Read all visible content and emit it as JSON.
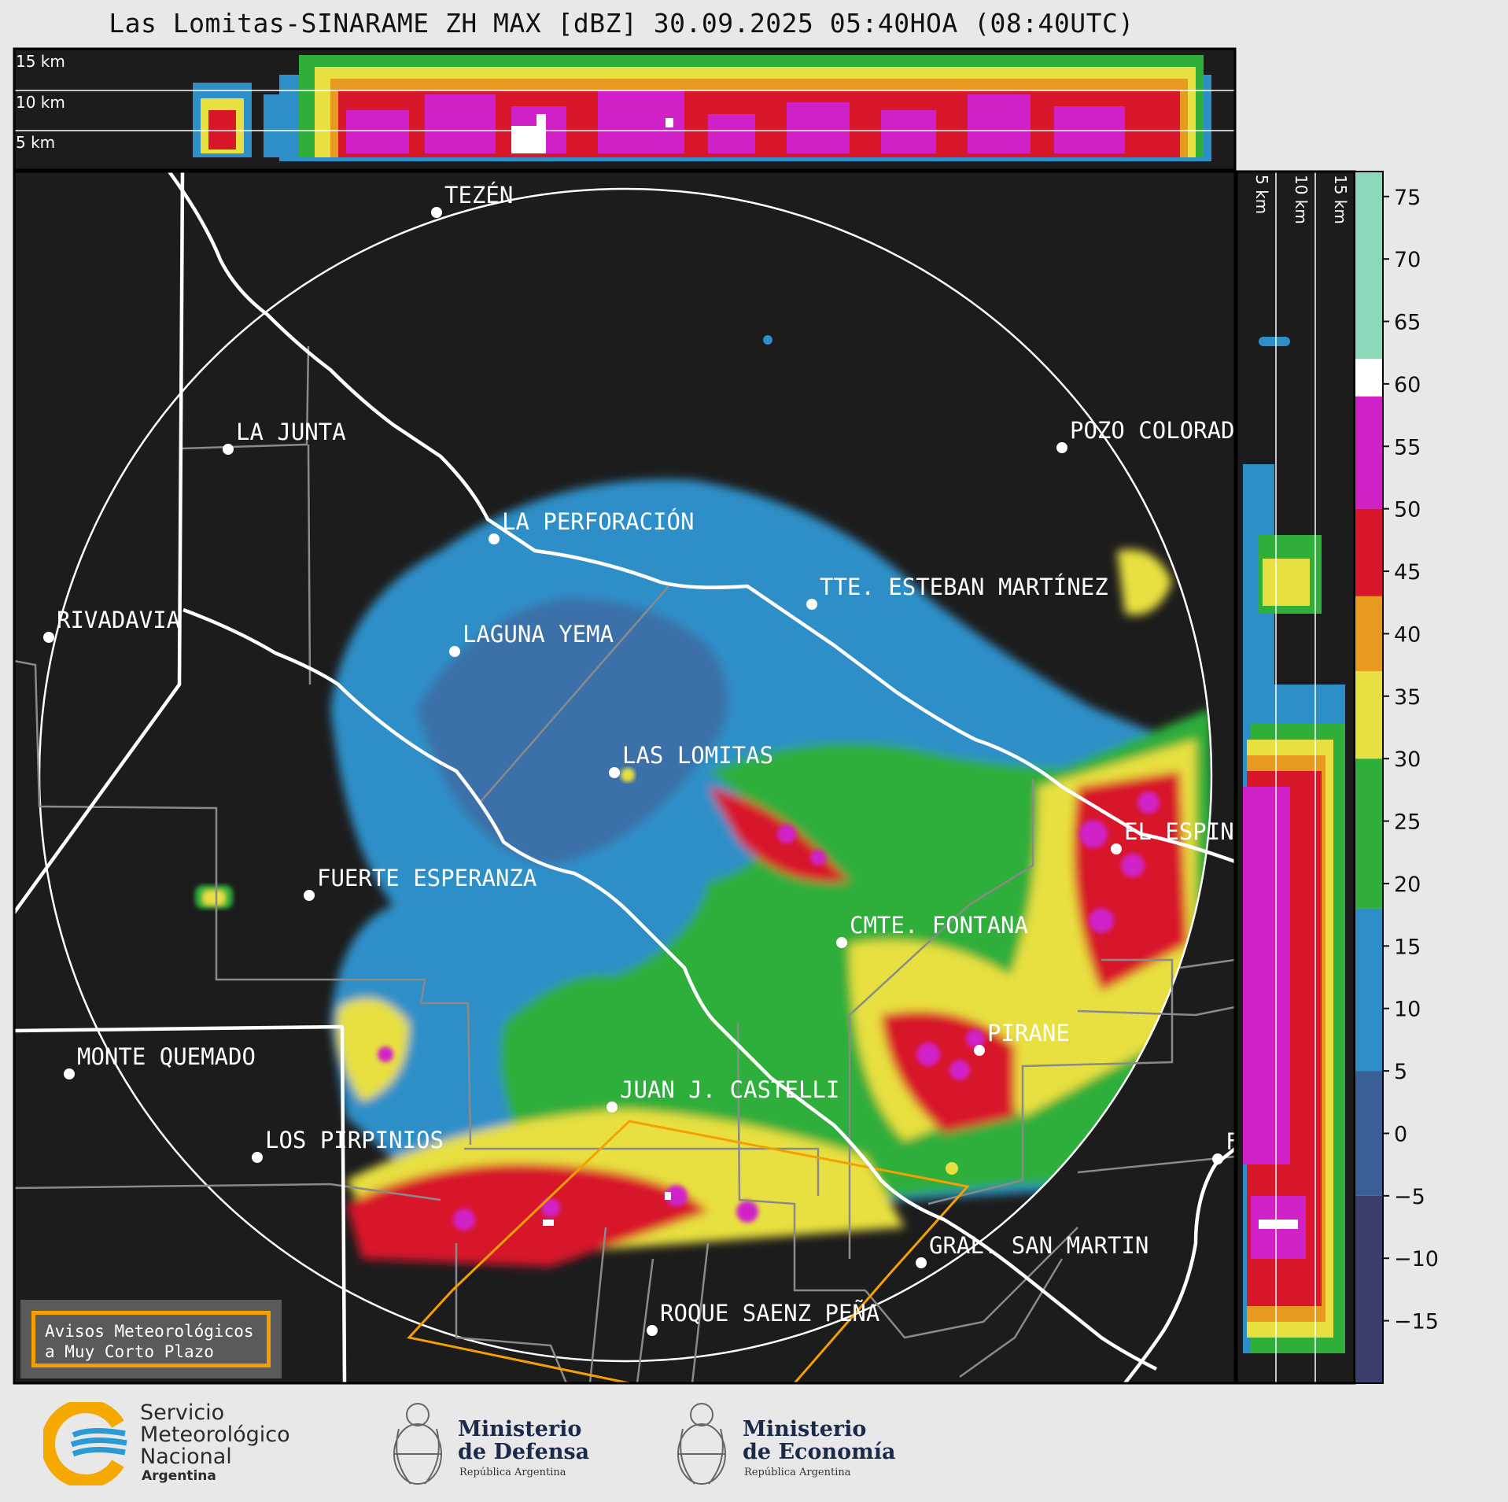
{
  "title": "Las Lomitas-SINARAME ZH MAX [dBZ] 30.09.2025 05:40HOA (08:40UTC)",
  "profile_top": {
    "levels": [
      "15 km",
      "10 km",
      "5 km"
    ]
  },
  "profile_right": {
    "levels": [
      "5 km",
      "10 km",
      "15 km"
    ]
  },
  "colorbar": {
    "ticks": [
      75,
      70,
      65,
      60,
      55,
      50,
      45,
      40,
      35,
      30,
      25,
      20,
      15,
      10,
      5,
      0,
      -5,
      -10,
      -15
    ],
    "tick_labels": [
      "75",
      "70",
      "65",
      "60",
      "55",
      "50",
      "45",
      "40",
      "35",
      "30",
      "25",
      "20",
      "15",
      "10",
      "5",
      "0",
      "−5",
      "−10",
      "−15"
    ],
    "range": [
      -20,
      77
    ],
    "stops": [
      {
        "from": -20,
        "to": -5,
        "color": "#3a3f6e"
      },
      {
        "from": -5,
        "to": 5,
        "color": "#3a5f95"
      },
      {
        "from": 5,
        "to": 18,
        "color": "#2e8fc8"
      },
      {
        "from": 18,
        "to": 30,
        "color": "#2fae3a"
      },
      {
        "from": 30,
        "to": 37,
        "color": "#e8e040"
      },
      {
        "from": 37,
        "to": 43,
        "color": "#e89a20"
      },
      {
        "from": 43,
        "to": 50,
        "color": "#d8182a"
      },
      {
        "from": 50,
        "to": 59,
        "color": "#d020c8"
      },
      {
        "from": 59,
        "to": 62,
        "color": "#ffffff"
      },
      {
        "from": 62,
        "to": 77,
        "color": "#8ad8b8"
      }
    ]
  },
  "cities": [
    {
      "name": "TEZÉN"
    },
    {
      "name": "LA JUNTA"
    },
    {
      "name": "POZO COLORAD"
    },
    {
      "name": "LA PERFORACIÓN"
    },
    {
      "name": "TTE. ESTEBAN MARTÍNEZ"
    },
    {
      "name": "RIVADAVIA"
    },
    {
      "name": "LAGUNA YEMA"
    },
    {
      "name": "LAS LOMITAS"
    },
    {
      "name": "EL ESPIN"
    },
    {
      "name": "FUERTE ESPERANZA"
    },
    {
      "name": "CMTE. FONTANA"
    },
    {
      "name": "PIRANE"
    },
    {
      "name": "MONTE QUEMADO"
    },
    {
      "name": "JUAN J. CASTELLI"
    },
    {
      "name": "LOS PIRPINIOS"
    },
    {
      "name": "GRAL. SAN MARTIN"
    },
    {
      "name": "ROQUE SAENZ PEÑA"
    },
    {
      "name": "F"
    }
  ],
  "warning": {
    "line1": "Avisos Meteorológicos",
    "line2": "a Muy Corto Plazo"
  },
  "logos": {
    "smn": {
      "line1": "Servicio",
      "line2": "Meteorológico",
      "line3": "Nacional",
      "line4": "Argentina"
    },
    "defensa": {
      "line1": "Ministerio",
      "line2": "de Defensa",
      "sub": "República Argentina"
    },
    "economia": {
      "line1": "Ministerio",
      "line2": "de Economía",
      "sub": "República Argentina"
    }
  }
}
